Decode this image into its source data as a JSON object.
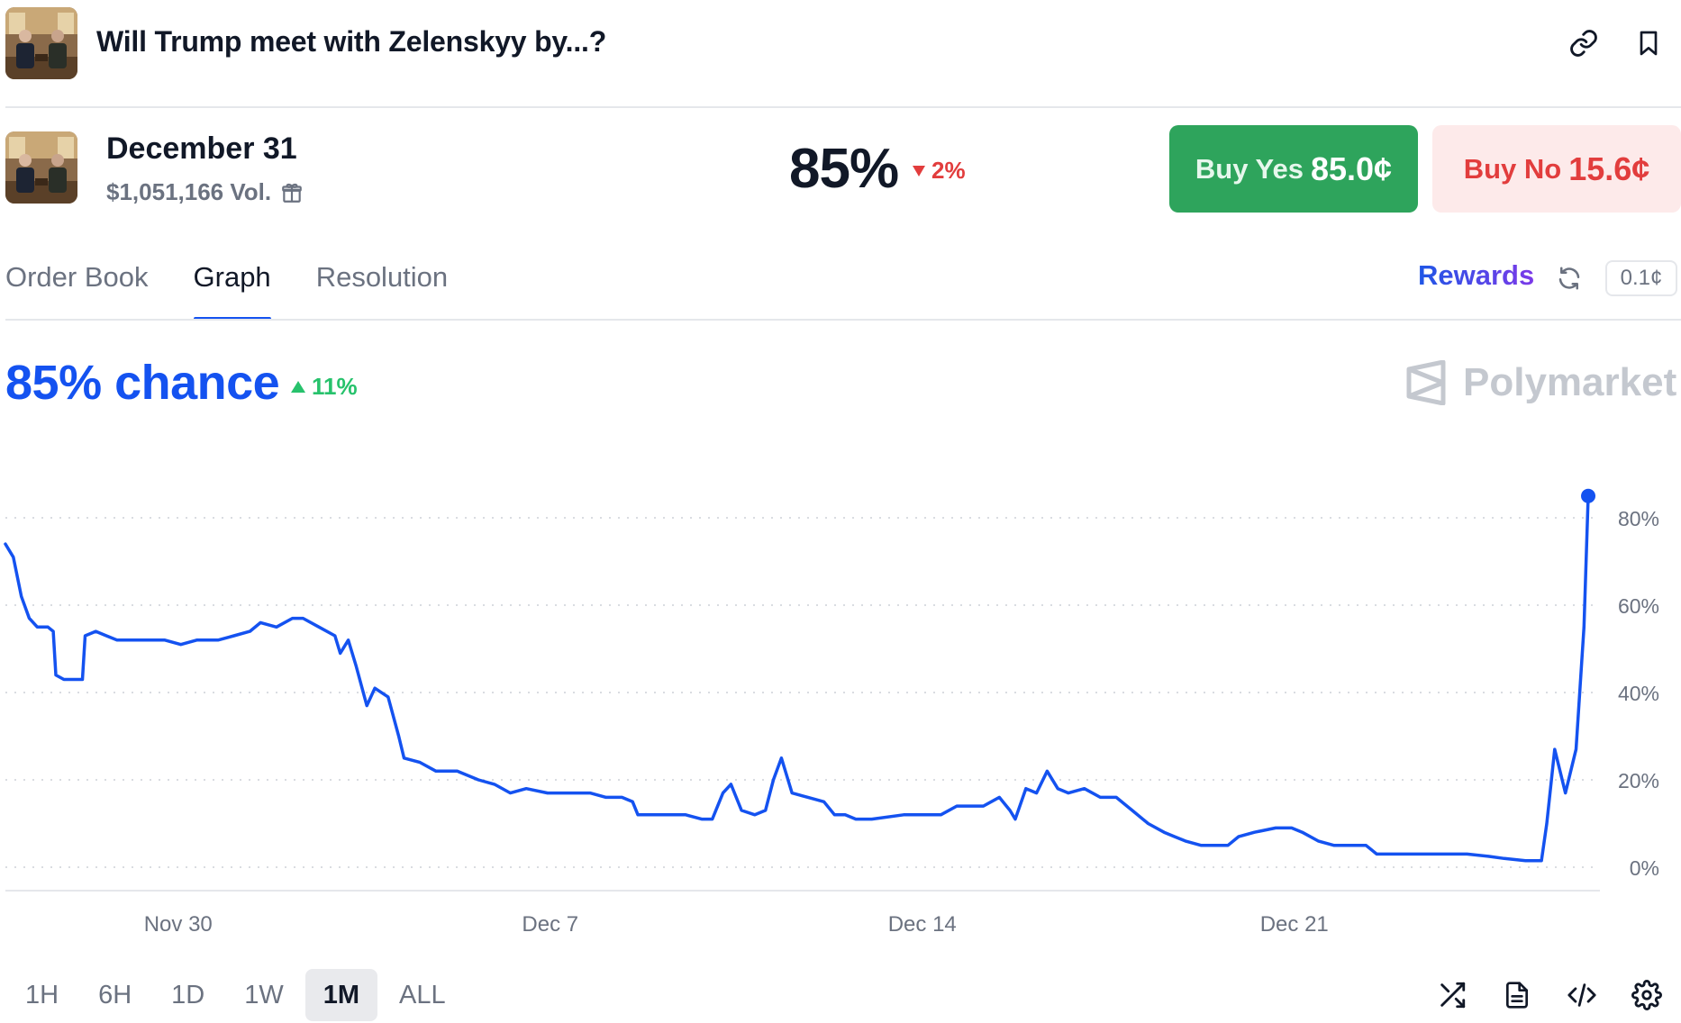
{
  "header": {
    "title": "Will Trump meet with Zelenskyy by...?"
  },
  "market": {
    "name": "December 31",
    "volume": "$1,051,166 Vol.",
    "probability": "85%",
    "change": "2%",
    "change_direction": "down",
    "buy_yes_label": "Buy Yes",
    "buy_yes_price": "85.0¢",
    "buy_no_label": "Buy No",
    "buy_no_price": "15.6¢"
  },
  "tabs": [
    {
      "label": "Order Book",
      "active": false
    },
    {
      "label": "Graph",
      "active": true
    },
    {
      "label": "Resolution",
      "active": false
    }
  ],
  "toolbar": {
    "rewards_label": "Rewards",
    "tick_size": "0.1¢"
  },
  "summary": {
    "chance": "85% chance",
    "change": "11%",
    "change_direction": "up"
  },
  "brand": {
    "name": "Polymarket"
  },
  "colors": {
    "accent": "#1452f0",
    "yes": "#2ea45c",
    "no": "#e23d3d",
    "up": "#27c26c"
  },
  "chart_data": {
    "type": "line",
    "yticks": [
      "0%",
      "20%",
      "40%",
      "60%",
      "80%"
    ],
    "ytick_values": [
      0,
      20,
      40,
      60,
      80
    ],
    "ylim": [
      -5,
      92
    ],
    "xticks": [
      "Nov 30",
      "Dec 7",
      "Dec 14",
      "Dec 21"
    ],
    "xtick_days": [
      3.25,
      10.25,
      17.25,
      24.25
    ],
    "xlim": [
      0,
      30
    ],
    "grid": true,
    "series": [
      {
        "values": [
          [
            0.0,
            74
          ],
          [
            0.15,
            71
          ],
          [
            0.3,
            62
          ],
          [
            0.45,
            57
          ],
          [
            0.6,
            55
          ],
          [
            0.8,
            55
          ],
          [
            0.9,
            54
          ],
          [
            0.95,
            44
          ],
          [
            1.1,
            43
          ],
          [
            1.3,
            43
          ],
          [
            1.45,
            43
          ],
          [
            1.5,
            53
          ],
          [
            1.7,
            54
          ],
          [
            1.9,
            53
          ],
          [
            2.1,
            52
          ],
          [
            2.5,
            52
          ],
          [
            3.0,
            52
          ],
          [
            3.3,
            51
          ],
          [
            3.6,
            52
          ],
          [
            4.0,
            52
          ],
          [
            4.3,
            53
          ],
          [
            4.6,
            54
          ],
          [
            4.8,
            56
          ],
          [
            5.1,
            55
          ],
          [
            5.4,
            57
          ],
          [
            5.6,
            57
          ],
          [
            5.9,
            55
          ],
          [
            6.2,
            53
          ],
          [
            6.3,
            49
          ],
          [
            6.45,
            52
          ],
          [
            6.6,
            46
          ],
          [
            6.8,
            37
          ],
          [
            6.95,
            41
          ],
          [
            7.2,
            39
          ],
          [
            7.4,
            30
          ],
          [
            7.5,
            25
          ],
          [
            7.8,
            24
          ],
          [
            8.1,
            22
          ],
          [
            8.5,
            22
          ],
          [
            8.9,
            20
          ],
          [
            9.2,
            19
          ],
          [
            9.5,
            17
          ],
          [
            9.8,
            18
          ],
          [
            10.2,
            17
          ],
          [
            10.6,
            17
          ],
          [
            11.0,
            17
          ],
          [
            11.3,
            16
          ],
          [
            11.6,
            16
          ],
          [
            11.8,
            15
          ],
          [
            11.9,
            12
          ],
          [
            12.3,
            12
          ],
          [
            12.8,
            12
          ],
          [
            13.1,
            11
          ],
          [
            13.3,
            11
          ],
          [
            13.5,
            17
          ],
          [
            13.65,
            19
          ],
          [
            13.85,
            13
          ],
          [
            14.1,
            12
          ],
          [
            14.3,
            13
          ],
          [
            14.45,
            20
          ],
          [
            14.6,
            25
          ],
          [
            14.8,
            17
          ],
          [
            15.1,
            16
          ],
          [
            15.4,
            15
          ],
          [
            15.6,
            12
          ],
          [
            15.8,
            12
          ],
          [
            16.0,
            11
          ],
          [
            16.3,
            11
          ],
          [
            16.9,
            12
          ],
          [
            17.3,
            12
          ],
          [
            17.6,
            12
          ],
          [
            17.9,
            14
          ],
          [
            18.1,
            14
          ],
          [
            18.4,
            14
          ],
          [
            18.7,
            16
          ],
          [
            18.9,
            13
          ],
          [
            19.0,
            11
          ],
          [
            19.2,
            18
          ],
          [
            19.4,
            17
          ],
          [
            19.6,
            22
          ],
          [
            19.8,
            18
          ],
          [
            20.0,
            17
          ],
          [
            20.3,
            18
          ],
          [
            20.6,
            16
          ],
          [
            20.9,
            16
          ],
          [
            21.2,
            13
          ],
          [
            21.5,
            10
          ],
          [
            21.8,
            8
          ],
          [
            22.0,
            7
          ],
          [
            22.2,
            6
          ],
          [
            22.5,
            5
          ],
          [
            22.8,
            5
          ],
          [
            23.0,
            5
          ],
          [
            23.2,
            7
          ],
          [
            23.5,
            8
          ],
          [
            23.9,
            9
          ],
          [
            24.2,
            9
          ],
          [
            24.4,
            8
          ],
          [
            24.7,
            6
          ],
          [
            25.0,
            5
          ],
          [
            25.3,
            5
          ],
          [
            25.6,
            5
          ],
          [
            25.8,
            3
          ],
          [
            26.1,
            3
          ],
          [
            26.4,
            3
          ],
          [
            26.8,
            3
          ],
          [
            27.1,
            3
          ],
          [
            27.5,
            3
          ],
          [
            27.9,
            2.5
          ],
          [
            28.2,
            2
          ],
          [
            28.6,
            1.5
          ],
          [
            28.9,
            1.5
          ],
          [
            29.0,
            10
          ],
          [
            29.15,
            27
          ],
          [
            29.35,
            17
          ],
          [
            29.55,
            27
          ],
          [
            29.7,
            55
          ],
          [
            29.78,
            85
          ]
        ]
      }
    ]
  },
  "ranges": [
    {
      "label": "1H",
      "active": false
    },
    {
      "label": "6H",
      "active": false
    },
    {
      "label": "1D",
      "active": false
    },
    {
      "label": "1W",
      "active": false
    },
    {
      "label": "1M",
      "active": true
    },
    {
      "label": "ALL",
      "active": false
    }
  ]
}
